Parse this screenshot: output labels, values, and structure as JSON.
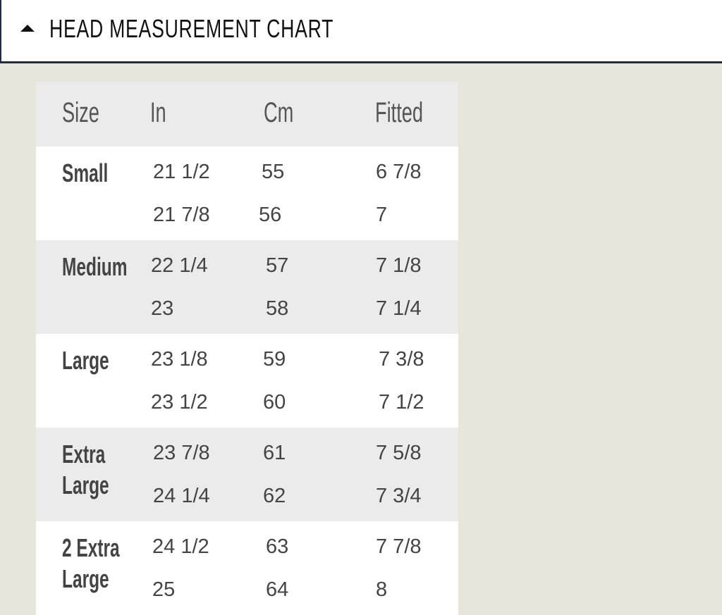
{
  "header": {
    "title": "HEAD MEASUREMENT CHART",
    "toggle_icon": "caret-up-icon"
  },
  "table": {
    "columns": [
      "Size",
      "In",
      "Cm",
      "Fitted"
    ],
    "rows": [
      {
        "size": "Small",
        "lines": [
          {
            "in": "21 1/2",
            "cm": "55",
            "fitted": "6 7/8"
          },
          {
            "in": "21 7/8",
            "cm": "56",
            "fitted": "7"
          }
        ]
      },
      {
        "size": "Medium",
        "lines": [
          {
            "in": "22 1/4",
            "cm": "57",
            "fitted": "7 1/8"
          },
          {
            "in": "23",
            "cm": "58",
            "fitted": "7 1/4"
          }
        ]
      },
      {
        "size": "Large",
        "lines": [
          {
            "in": "23 1/8",
            "cm": "59",
            "fitted": "7 3/8"
          },
          {
            "in": "23 1/2",
            "cm": "60",
            "fitted": "7 1/2"
          }
        ]
      },
      {
        "size": "Extra Large",
        "lines": [
          {
            "in": "23 7/8",
            "cm": "61",
            "fitted": "7 5/8"
          },
          {
            "in": "24 1/4",
            "cm": "62",
            "fitted": "7 3/4"
          }
        ]
      },
      {
        "size": "2 Extra Large",
        "lines": [
          {
            "in": "24 1/2",
            "cm": "63",
            "fitted": "7 7/8"
          },
          {
            "in": "25",
            "cm": "64",
            "fitted": "8"
          }
        ]
      }
    ]
  }
}
